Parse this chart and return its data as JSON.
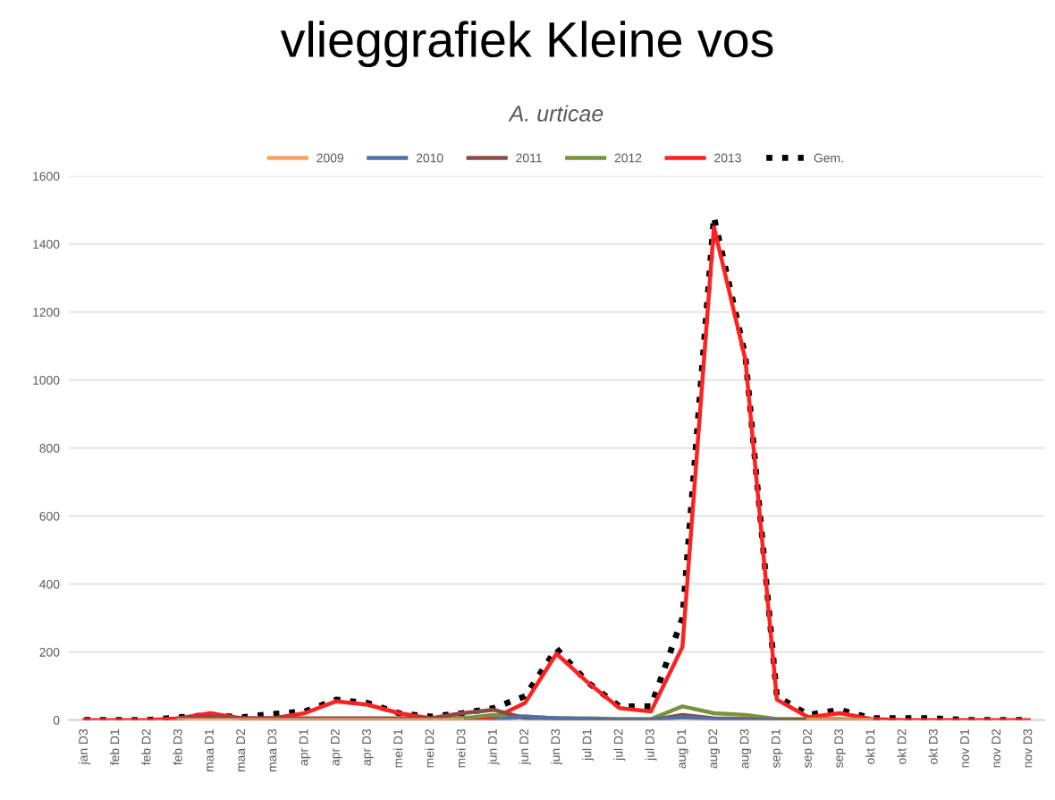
{
  "chart_data": {
    "type": "line",
    "title": "vlieggrafiek Kleine vos",
    "subtitle": "A. urticae",
    "categories": [
      "jan D3",
      "feb D1",
      "feb D2",
      "feb D3",
      "maa D1",
      "maa D2",
      "maa D3",
      "apr D1",
      "apr D2",
      "apr D3",
      "mei D1",
      "mei D2",
      "mei D3",
      "jun D1",
      "jun D2",
      "jun D3",
      "jul D1",
      "jul D2",
      "jul D3",
      "aug D1",
      "aug D2",
      "aug D3",
      "sep D1",
      "sep D2",
      "sep D3",
      "okt D1",
      "okt D2",
      "okt D3",
      "nov D1",
      "nov D2",
      "nov D3"
    ],
    "series": [
      {
        "name": "2009",
        "color": "#f4a460",
        "values": [
          null,
          null,
          null,
          0,
          0,
          0,
          0,
          0,
          0,
          0,
          0,
          0,
          0,
          null,
          null,
          null,
          null,
          null,
          null,
          null,
          null,
          null,
          null,
          0,
          0,
          0,
          null,
          null,
          null,
          null,
          null
        ]
      },
      {
        "name": "2010",
        "color": "#4f6fa8",
        "values": [
          null,
          null,
          null,
          null,
          null,
          null,
          null,
          null,
          null,
          null,
          null,
          null,
          null,
          0,
          10,
          5,
          3,
          0,
          0,
          8,
          3,
          0,
          0,
          null,
          null,
          null,
          null,
          null,
          null,
          null,
          null
        ]
      },
      {
        "name": "2011",
        "color": "#8b4a46",
        "values": [
          null,
          null,
          null,
          5,
          10,
          5,
          5,
          5,
          5,
          5,
          5,
          5,
          20,
          30,
          5,
          5,
          3,
          0,
          0,
          15,
          5,
          3,
          0,
          0,
          0,
          0,
          null,
          null,
          null,
          null,
          null
        ]
      },
      {
        "name": "2012",
        "color": "#77933c",
        "values": [
          null,
          null,
          null,
          null,
          null,
          3,
          3,
          3,
          3,
          3,
          3,
          3,
          5,
          15,
          10,
          5,
          5,
          3,
          3,
          40,
          20,
          15,
          3,
          3,
          3,
          0,
          null,
          null,
          null,
          null,
          null
        ]
      },
      {
        "name": "2013",
        "color": "#ff2020",
        "values": [
          0,
          0,
          0,
          5,
          20,
          5,
          5,
          20,
          55,
          45,
          20,
          5,
          5,
          5,
          50,
          195,
          110,
          35,
          25,
          215,
          1450,
          1060,
          60,
          8,
          20,
          3,
          0,
          0,
          0,
          0,
          0
        ]
      },
      {
        "name": "Gem.",
        "color": "#000000",
        "line_style": "dotted",
        "values": [
          0,
          0,
          0,
          8,
          15,
          8,
          18,
          25,
          60,
          50,
          20,
          10,
          20,
          35,
          70,
          210,
          110,
          40,
          40,
          300,
          1480,
          1070,
          70,
          15,
          30,
          5,
          5,
          5,
          0,
          0,
          0
        ]
      }
    ],
    "ylim": [
      0,
      1600
    ],
    "yticks": [
      0,
      200,
      400,
      600,
      800,
      1000,
      1200,
      1400,
      1600
    ],
    "grid": "y",
    "legend": "top"
  }
}
